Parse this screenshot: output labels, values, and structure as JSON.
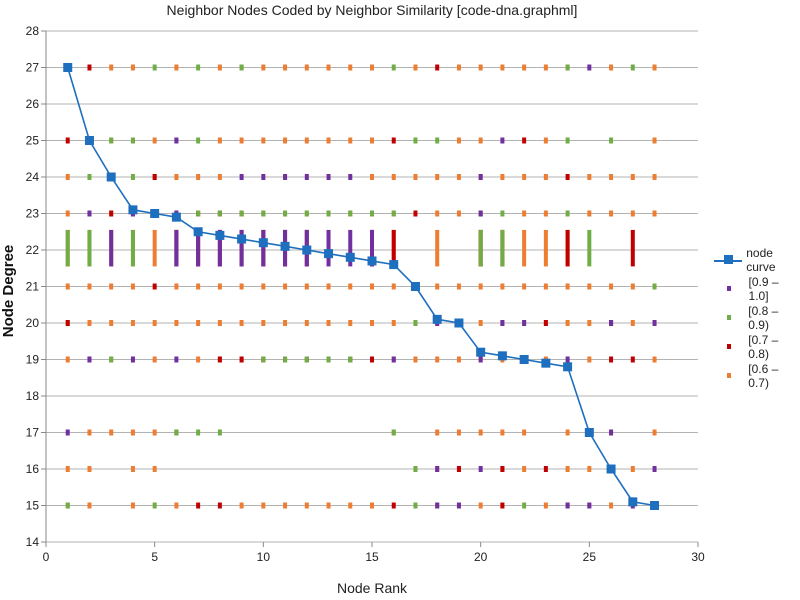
{
  "chart_data": {
    "type": "scatter",
    "title": "Neighbor Nodes Coded by Neighbor Similarity [code-dna.graphml]",
    "xlabel": "Node Rank",
    "ylabel": "Node Degree",
    "xlim": [
      0,
      30
    ],
    "ylim": [
      14,
      28
    ],
    "xticks": [
      "0",
      "5",
      "10",
      "15",
      "20",
      "25",
      "30"
    ],
    "yticks": [
      "14",
      "15",
      "16",
      "17",
      "18",
      "19",
      "20",
      "21",
      "22",
      "23",
      "24",
      "25",
      "26",
      "27",
      "28"
    ],
    "grid": "horizontal",
    "legend_position": "right",
    "line_series": {
      "name": "node curve",
      "color": "#1f6fbf",
      "x": [
        1,
        2,
        3,
        4,
        5,
        6,
        7,
        8,
        9,
        10,
        11,
        12,
        13,
        14,
        15,
        16,
        17,
        18,
        19,
        20,
        21,
        22,
        23,
        24,
        25,
        26,
        27,
        28
      ],
      "y": [
        27,
        25,
        24,
        23.1,
        23,
        22.9,
        22.5,
        22.4,
        22.3,
        22.2,
        22.1,
        22,
        21.9,
        21.8,
        21.7,
        21.6,
        21,
        20.1,
        20,
        19.2,
        19.1,
        19,
        18.9,
        18.8,
        17,
        16,
        15.1,
        15
      ]
    },
    "series": [
      {
        "name": "[0.9 – 1.0]",
        "color": "#7030a0",
        "rows": [
          {
            "y": 27,
            "x": [
              25
            ]
          },
          {
            "y": 25,
            "x": [
              6,
              21
            ]
          },
          {
            "y": 24,
            "x": [
              9,
              10,
              11,
              12,
              13,
              14,
              20
            ]
          },
          {
            "y": 23,
            "x": [
              2,
              4,
              6,
              20
            ]
          },
          {
            "y": 22,
            "x": [
              3,
              6,
              7,
              8,
              9,
              10,
              11,
              12,
              13,
              14,
              15
            ],
            "bar": true
          },
          {
            "y": 20,
            "x": [
              18,
              19,
              21,
              22,
              26,
              28
            ]
          },
          {
            "y": 19,
            "x": [
              2,
              4,
              6,
              16,
              20,
              24
            ]
          },
          {
            "y": 17,
            "x": [
              1,
              26
            ]
          },
          {
            "y": 16,
            "x": [
              18,
              20,
              26,
              28
            ]
          },
          {
            "y": 15,
            "x": [
              18,
              19,
              24,
              25,
              27
            ]
          }
        ]
      },
      {
        "name": "[0.8 – 0.9)",
        "color": "#70ad47",
        "rows": [
          {
            "y": 27,
            "x": [
              5,
              7,
              9,
              16,
              24,
              27
            ]
          },
          {
            "y": 25,
            "x": [
              3,
              4,
              6,
              7,
              17,
              18,
              24,
              26
            ]
          },
          {
            "y": 24,
            "x": [
              2,
              4,
              11
            ]
          },
          {
            "y": 23,
            "x": [
              7,
              8,
              9,
              10,
              11,
              12,
              13,
              14,
              15,
              16,
              20,
              21,
              24
            ]
          },
          {
            "y": 22,
            "x": [
              1,
              2,
              4,
              20,
              21,
              25
            ],
            "bar": true
          },
          {
            "y": 21,
            "x": [
              17,
              28
            ]
          },
          {
            "y": 20,
            "x": [
              17,
              22
            ]
          },
          {
            "y": 19,
            "x": [
              2,
              3,
              4,
              10,
              11,
              12,
              13,
              14
            ]
          },
          {
            "y": 17,
            "x": [
              6,
              7,
              8,
              16
            ]
          },
          {
            "y": 16,
            "x": [
              17
            ]
          },
          {
            "y": 15,
            "x": [
              1,
              5,
              17,
              22
            ]
          }
        ]
      },
      {
        "name": "[0.7 – 0.8)",
        "color": "#c00000",
        "rows": [
          {
            "y": 27,
            "x": [
              2,
              18
            ]
          },
          {
            "y": 25,
            "x": [
              1,
              16,
              22
            ]
          },
          {
            "y": 24,
            "x": [
              5,
              24
            ]
          },
          {
            "y": 23,
            "x": [
              3,
              7,
              8,
              9,
              17
            ]
          },
          {
            "y": 22,
            "x": [
              6,
              7,
              8,
              9,
              10,
              11,
              12,
              15,
              16,
              20,
              21,
              24,
              27
            ],
            "bar": true
          },
          {
            "y": 21,
            "x": [
              5
            ]
          },
          {
            "y": 20,
            "x": [
              1,
              23,
              26
            ]
          },
          {
            "y": 19,
            "x": [
              8,
              9,
              10,
              11,
              12,
              13,
              14,
              15,
              26,
              27
            ]
          },
          {
            "y": 17,
            "x": [
              6
            ]
          },
          {
            "y": 16,
            "x": [
              19,
              21,
              23
            ]
          },
          {
            "y": 15,
            "x": [
              7,
              8,
              16,
              21
            ]
          }
        ]
      },
      {
        "name": "[0.6 – 0.7)",
        "color": "#ed7d31",
        "rows": [
          {
            "y": 27,
            "x": [
              3,
              4,
              6,
              8,
              9,
              10,
              11,
              12,
              13,
              14,
              15,
              17,
              19,
              20,
              21,
              22,
              23,
              24,
              26,
              28
            ]
          },
          {
            "y": 25,
            "x": [
              3,
              4,
              5,
              8,
              9,
              10,
              11,
              12,
              13,
              14,
              15,
              19,
              20,
              23,
              28
            ]
          },
          {
            "y": 24,
            "x": [
              1,
              3,
              5,
              6,
              7,
              8,
              15,
              16,
              17,
              18,
              19,
              20,
              21,
              22,
              23,
              25,
              26,
              27,
              28
            ]
          },
          {
            "y": 23,
            "x": [
              1,
              2,
              3,
              4,
              5,
              6,
              7,
              8,
              9,
              10,
              11,
              12,
              13,
              14,
              15,
              16,
              18,
              19,
              20,
              22,
              23,
              25,
              26,
              27,
              28
            ]
          },
          {
            "y": 22,
            "x": [
              1,
              2,
              3,
              4,
              5,
              6,
              16,
              18,
              20,
              22,
              23,
              24
            ],
            "bar": true
          },
          {
            "y": 21,
            "x": [
              1,
              2,
              3,
              4,
              6,
              7,
              8,
              9,
              10,
              11,
              12,
              13,
              14,
              15,
              16,
              18,
              19,
              20,
              21,
              22,
              23,
              24,
              25,
              26,
              27
            ]
          },
          {
            "y": 20,
            "x": [
              1,
              2,
              3,
              4,
              5,
              6,
              7,
              8,
              9,
              10,
              11,
              12,
              13,
              14,
              15,
              16,
              17,
              18,
              19,
              20,
              21,
              23,
              24,
              25,
              27,
              28
            ]
          },
          {
            "y": 19,
            "x": [
              1,
              2,
              3,
              5,
              7,
              8,
              9,
              10,
              16,
              17,
              18,
              19,
              20,
              21,
              22,
              23,
              25,
              28
            ]
          },
          {
            "y": 17,
            "x": [
              2,
              3,
              4,
              5,
              16,
              18,
              19,
              20,
              21,
              22,
              24,
              25,
              26,
              28
            ]
          },
          {
            "y": 16,
            "x": [
              1,
              2,
              4,
              5,
              17,
              18,
              19,
              21,
              22,
              24,
              25,
              27
            ]
          },
          {
            "y": 15,
            "x": [
              1,
              2,
              4,
              6,
              9,
              10,
              11,
              12,
              13,
              14,
              15,
              17,
              18,
              19,
              20,
              21,
              23,
              24,
              25,
              26,
              28
            ]
          }
        ]
      }
    ]
  }
}
